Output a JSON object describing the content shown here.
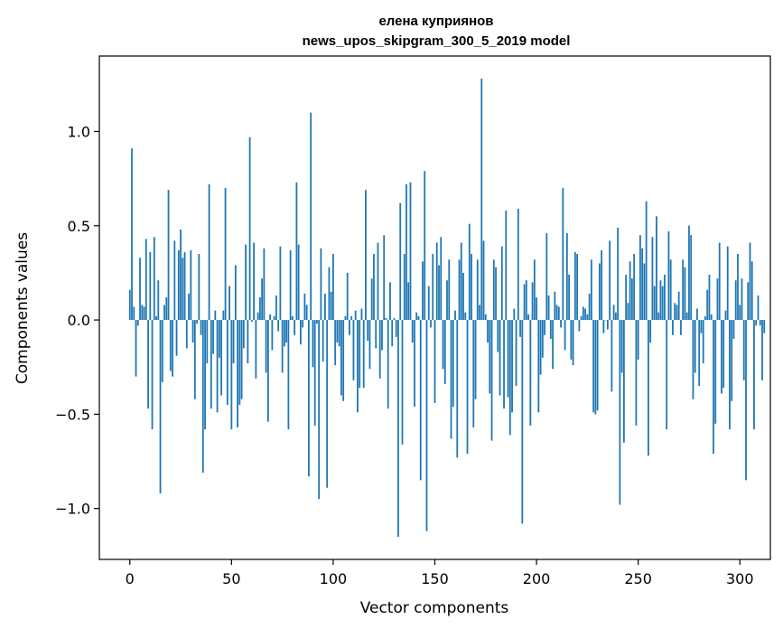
{
  "chart_data": {
    "type": "bar",
    "title": "елена куприянов",
    "subtitle": "news_upos_skipgram_300_5_2019 model",
    "xlabel": "Vector components",
    "ylabel": "Components values",
    "xlim": [
      -15,
      315
    ],
    "ylim": [
      -1.27,
      1.4
    ],
    "xticks": [
      0,
      50,
      100,
      150,
      200,
      250,
      300
    ],
    "xtick_labels": [
      "0",
      "50",
      "100",
      "150",
      "200",
      "250",
      "300"
    ],
    "yticks": [
      -1.0,
      -0.5,
      0.0,
      0.5,
      1.0
    ],
    "ytick_labels": [
      "−1.0",
      "−0.5",
      "0.0",
      "0.5",
      "1.0"
    ],
    "grid": false,
    "bar_color": "#1f77b4",
    "values": [
      0.16,
      0.91,
      0.07,
      -0.3,
      -0.03,
      0.33,
      0.08,
      0.07,
      0.43,
      -0.47,
      0.36,
      -0.58,
      0.44,
      0.02,
      0.21,
      -0.92,
      -0.33,
      0.08,
      0.12,
      0.69,
      -0.27,
      -0.3,
      0.42,
      -0.19,
      0.37,
      0.48,
      0.33,
      0.36,
      -0.15,
      0.14,
      0.37,
      -0.12,
      -0.42,
      -0.02,
      0.35,
      -0.08,
      -0.81,
      -0.58,
      -0.23,
      0.72,
      -0.47,
      -0.18,
      0.05,
      -0.49,
      -0.2,
      -0.4,
      0.05,
      0.7,
      -0.45,
      0.18,
      -0.58,
      -0.23,
      0.29,
      -0.57,
      -0.45,
      -0.42,
      -0.15,
      0.4,
      -0.23,
      0.97,
      -0.01,
      0.41,
      -0.31,
      0.04,
      0.12,
      0.22,
      0.38,
      -0.28,
      -0.54,
      0.03,
      -0.16,
      0.02,
      0.13,
      -0.06,
      0.39,
      -0.28,
      -0.14,
      -0.12,
      -0.58,
      0.37,
      0.02,
      -0.08,
      0.73,
      0.4,
      -0.13,
      -0.04,
      0.14,
      0.08,
      -0.83,
      1.1,
      -0.25,
      -0.56,
      -0.02,
      -0.95,
      0.38,
      -0.22,
      0.14,
      -0.89,
      0.28,
      0.15,
      0.35,
      -0.24,
      -0.12,
      -0.14,
      -0.4,
      -0.43,
      0.02,
      0.25,
      -0.08,
      0.02,
      -0.32,
      0.05,
      -0.49,
      -0.36,
      0.06,
      -0.36,
      0.69,
      -0.11,
      -0.26,
      0.22,
      0.35,
      -0.15,
      0.41,
      -0.31,
      -0.16,
      0.45,
      0.01,
      -0.47,
      0.2,
      -0.14,
      0.01,
      -0.09,
      -1.15,
      0.62,
      -0.66,
      0.35,
      0.72,
      0.2,
      0.73,
      -0.12,
      -0.46,
      0.04,
      0.02,
      -0.85,
      0.31,
      0.79,
      -1.12,
      0.18,
      -0.04,
      0.35,
      -0.44,
      0.41,
      0.29,
      0.44,
      -0.26,
      -0.34,
      0.21,
      0.32,
      -0.63,
      -0.46,
      0.05,
      -0.73,
      0.32,
      0.41,
      0.25,
      0.04,
      -0.71,
      0.51,
      0.35,
      -0.57,
      -0.42,
      0.32,
      0.08,
      1.28,
      0.42,
      0.03,
      -0.12,
      -0.39,
      -0.64,
      0.32,
      0.28,
      -0.17,
      -0.4,
      0.39,
      -0.47,
      0.58,
      -0.41,
      -0.61,
      -0.49,
      0.06,
      -0.35,
      0.59,
      -0.09,
      -1.08,
      0.19,
      0.21,
      0.03,
      -0.56,
      0.2,
      0.32,
      0.12,
      -0.49,
      -0.29,
      -0.2,
      -0.08,
      0.46,
      0.13,
      -0.1,
      -0.26,
      0.15,
      0.08,
      0.07,
      -0.04,
      0.7,
      -0.16,
      0.46,
      0.24,
      -0.21,
      -0.24,
      0.36,
      0.35,
      -0.06,
      0.02,
      0.07,
      0.06,
      0.03,
      0.14,
      0.32,
      -0.49,
      -0.5,
      -0.48,
      0.3,
      0.37,
      -0.07,
      0.0,
      -0.05,
      0.42,
      -0.38,
      0.08,
      0.04,
      0.49,
      -0.98,
      -0.28,
      -0.65,
      0.24,
      0.09,
      0.31,
      0.22,
      0.35,
      -0.56,
      -0.21,
      0.45,
      0.38,
      0.3,
      0.63,
      -0.72,
      -0.12,
      0.44,
      0.18,
      0.55,
      0.04,
      0.21,
      0.18,
      0.24,
      -0.58,
      0.47,
      0.32,
      -0.08,
      0.09,
      0.08,
      0.15,
      -0.08,
      0.32,
      0.28,
      0.04,
      0.5,
      0.45,
      -0.42,
      -0.28,
      0.06,
      -0.35,
      -0.07,
      -0.23,
      0.02,
      0.16,
      0.24,
      0.03,
      -0.71,
      -0.55,
      0.22,
      0.41,
      -0.39,
      -0.36,
      0.05,
      0.39,
      -0.58,
      -0.43,
      -0.1,
      0.21,
      0.35,
      0.08,
      0.22,
      -0.32,
      -0.85,
      0.2,
      0.41,
      0.31,
      -0.58,
      -0.03,
      0.13,
      -0.03,
      -0.32,
      -0.07
    ]
  }
}
